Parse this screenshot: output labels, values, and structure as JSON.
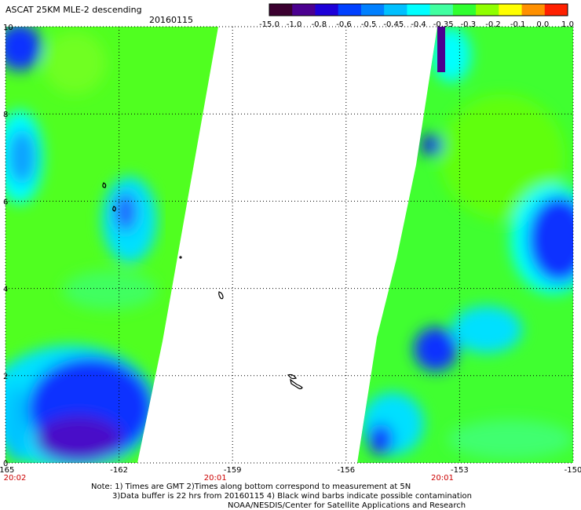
{
  "header": {
    "title": "ASCAT 25KM MLE-2 descending",
    "date": "20160115"
  },
  "colorbar": {
    "tick_labels": [
      "-15.0",
      "-1.0",
      "-0.8",
      "-0.6",
      "-0.5",
      "-0.45",
      "-0.4",
      "-0.35",
      "-0.3",
      "-0.2",
      "-0.1",
      "0.0",
      "1.0"
    ],
    "colors": [
      "#3b0030",
      "#4b0090",
      "#1d00d8",
      "#0040ff",
      "#0080ff",
      "#00c0ff",
      "#00ffff",
      "#40ffa0",
      "#30ff30",
      "#90ff00",
      "#ffff00",
      "#ff9000",
      "#ff2000"
    ]
  },
  "map": {
    "lon_labels": [
      "-165",
      "-162",
      "-159",
      "-156",
      "-153",
      "-150"
    ],
    "lat_labels": [
      "0",
      "2",
      "4",
      "6",
      "8",
      "10"
    ],
    "lon_range": [
      -165,
      -150
    ],
    "lat_range": [
      0,
      10
    ],
    "time_labels": [
      "20:02",
      "20:01",
      "20:01"
    ],
    "time_color": "#cc0000",
    "grid": true
  },
  "notes": {
    "line1": "Note: 1) Times are GMT 2)Times along bottom correspond to measurement at 5N",
    "line2": "3)Data buffer is 22 hrs from 20160115 4) Black wind barbs indicate possible contamination",
    "line3": "NOAA/NESDIS/Center for Satellite Applications and Research"
  }
}
